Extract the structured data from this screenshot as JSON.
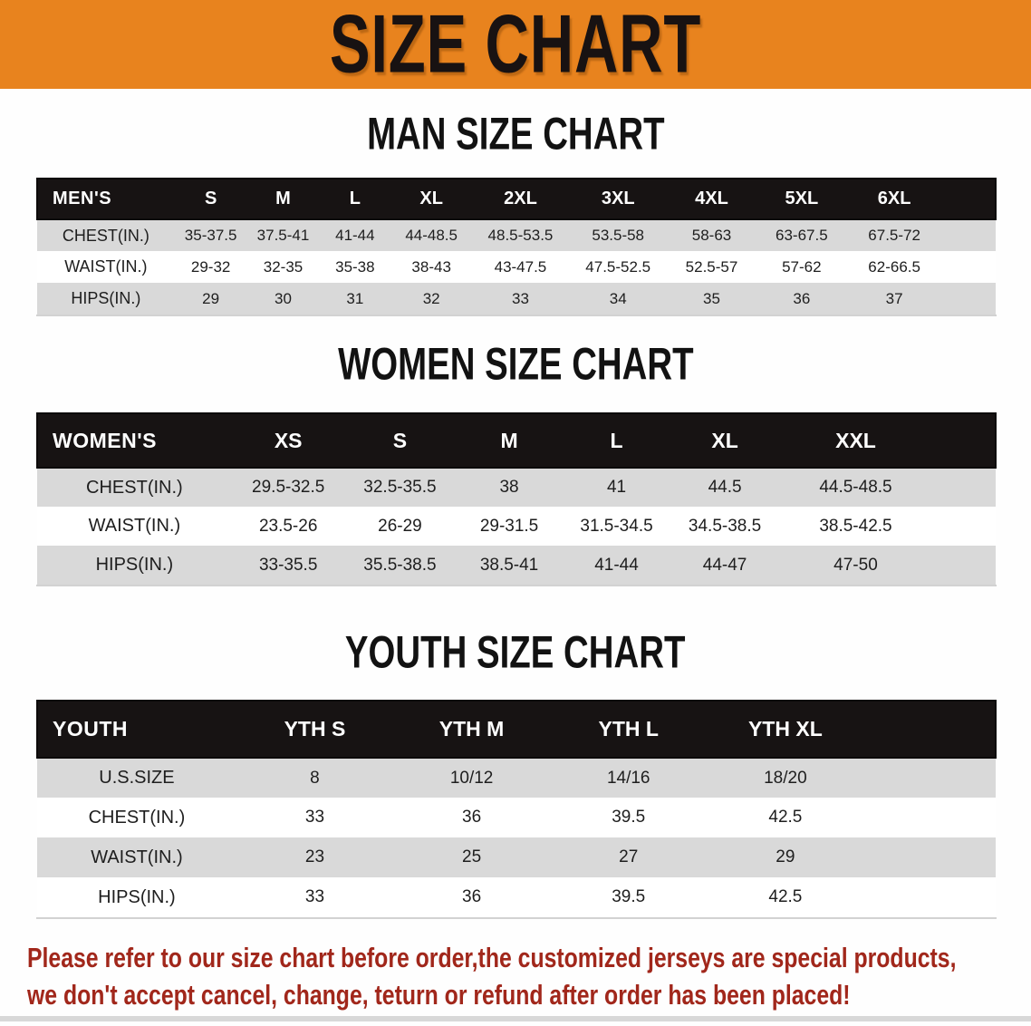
{
  "banner": {
    "title": "SIZE CHART"
  },
  "colors": {
    "banner_bg": "#E8831E",
    "table_header_bg": "#171313",
    "row_shade": "#D9D9D9",
    "row_plain": "#FFFFFF",
    "disclaimer_text": "#A1271B"
  },
  "sections": [
    {
      "heading": "MAN SIZE CHART",
      "group_label": "MEN'S",
      "sizes": [
        "S",
        "M",
        "L",
        "XL",
        "2XL",
        "3XL",
        "4XL",
        "5XL",
        "6XL"
      ],
      "rows": [
        {
          "label": "CHEST(IN.)",
          "values": [
            "35-37.5",
            "37.5-41",
            "41-44",
            "44-48.5",
            "48.5-53.5",
            "53.5-58",
            "58-63",
            "63-67.5",
            "67.5-72"
          ]
        },
        {
          "label": "WAIST(IN.)",
          "values": [
            "29-32",
            "32-35",
            "35-38",
            "38-43",
            "43-47.5",
            "47.5-52.5",
            "52.5-57",
            "57-62",
            "62-66.5"
          ]
        },
        {
          "label": "HIPS(IN.)",
          "values": [
            "29",
            "30",
            "31",
            "32",
            "33",
            "34",
            "35",
            "36",
            "37"
          ]
        }
      ]
    },
    {
      "heading": "WOMEN SIZE CHART",
      "group_label": "WOMEN'S",
      "sizes": [
        "XS",
        "S",
        "M",
        "L",
        "XL",
        "XXL"
      ],
      "rows": [
        {
          "label": "CHEST(IN.)",
          "values": [
            "29.5-32.5",
            "32.5-35.5",
            "38",
            "41",
            "44.5",
            "44.5-48.5"
          ]
        },
        {
          "label": "WAIST(IN.)",
          "values": [
            "23.5-26",
            "26-29",
            "29-31.5",
            "31.5-34.5",
            "34.5-38.5",
            "38.5-42.5"
          ]
        },
        {
          "label": "HIPS(IN.)",
          "values": [
            "33-35.5",
            "35.5-38.5",
            "38.5-41",
            "41-44",
            "44-47",
            "47-50"
          ]
        }
      ]
    },
    {
      "heading": "YOUTH SIZE CHART",
      "group_label": "YOUTH",
      "sizes": [
        "YTH S",
        "YTH M",
        "YTH L",
        "YTH XL"
      ],
      "rows": [
        {
          "label": "U.S.SIZE",
          "values": [
            "8",
            "10/12",
            "14/16",
            "18/20"
          ]
        },
        {
          "label": "CHEST(IN.)",
          "values": [
            "33",
            "36",
            "39.5",
            "42.5"
          ]
        },
        {
          "label": "WAIST(IN.)",
          "values": [
            "23",
            "25",
            "27",
            "29"
          ]
        },
        {
          "label": "HIPS(IN.)",
          "values": [
            "33",
            "36",
            "39.5",
            "42.5"
          ]
        }
      ]
    }
  ],
  "footer": {
    "line1": "Please refer to our size chart before order,the customized jerseys are special products,",
    "line2": "we don't accept cancel, change, teturn or refund after order has been placed!"
  }
}
